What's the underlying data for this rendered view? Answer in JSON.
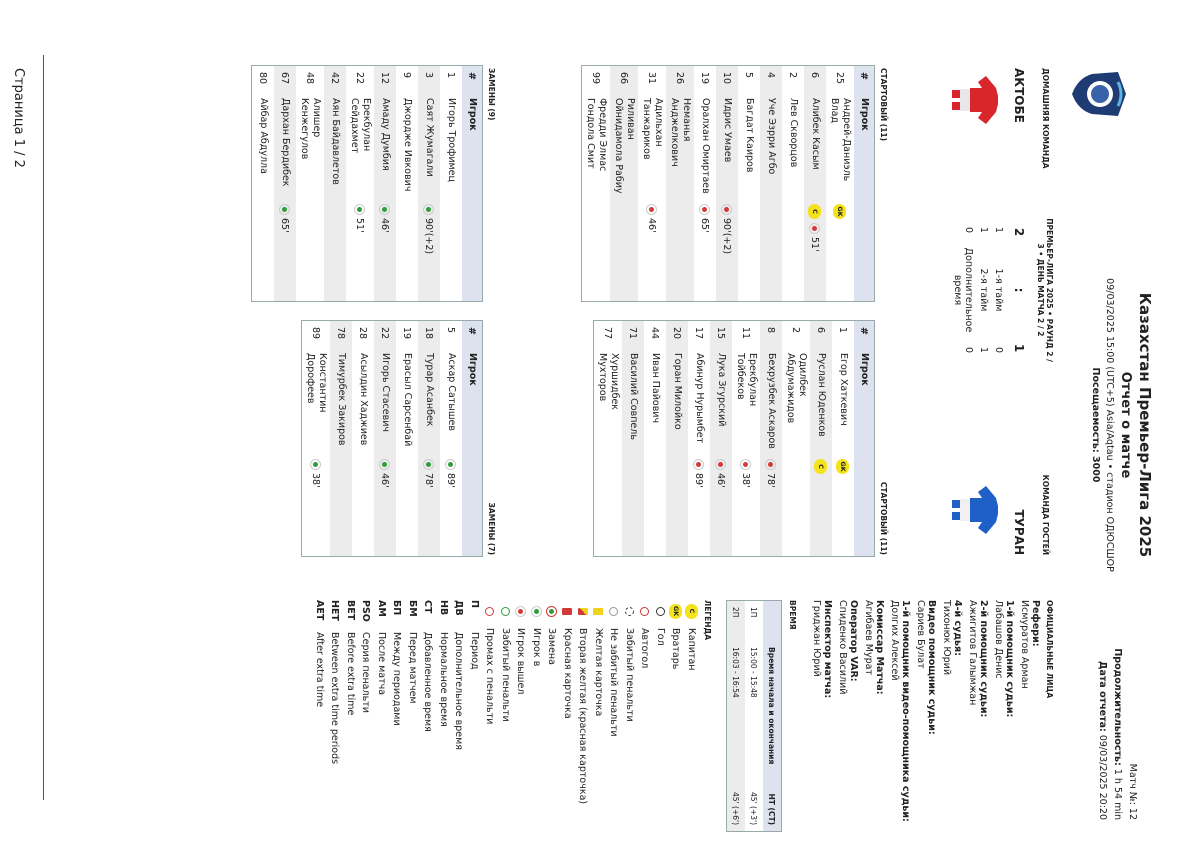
{
  "header": {
    "title": "Казахстан Премьер-Лига 2025",
    "subtitle": "Отчет о матче",
    "datetime": "09/03/2025 15:00 (UTC+5) Asia/Aqtau  •  стадион ОДЮСШОР",
    "attendance": "Посещаемость: 3000",
    "match_no": "Матч №: 12",
    "duration_label": "Продолжительность:",
    "duration": "1 h 54 min",
    "report_date_label": "Дата отчета:",
    "report_date": "09/03/2025 20:20"
  },
  "match": {
    "home_label": "ДОМАШНЯЯ КОМАНДА",
    "competition": "ПРЕМЬЕР-ЛИГА 2025 • РАУНД 2 / 3 • ДЕНЬ МАТЧА 2 / 2",
    "away_label": "КОМАНДА ГОСТЕЙ",
    "home_team": "АКТОБЕ",
    "away_team": "ТУРАН",
    "home_score": "2",
    "separator": ":",
    "away_score": "1",
    "periods": [
      {
        "home": "1",
        "label": "1-я тайм",
        "away": "0"
      },
      {
        "home": "1",
        "label": "2-я тайм",
        "away": "1"
      },
      {
        "home": "0",
        "label": "Дополнительное время",
        "away": "0"
      }
    ]
  },
  "home": {
    "starting_title": "СТАРТОВЫЙ (11)",
    "subs_title": "ЗАМЕНЫ (9)",
    "columns": [
      "#",
      "Игрок"
    ],
    "starting": [
      {
        "number": "25",
        "name": "Андрей-Даниэль Влад",
        "badges": [
          "GK"
        ],
        "events": []
      },
      {
        "number": "6",
        "name": "Алибек Касым",
        "badges": [
          "C"
        ],
        "events": [
          {
            "type": "out",
            "minute": "51'"
          }
        ]
      },
      {
        "number": "2",
        "name": "Лев Скворцов",
        "badges": [],
        "events": []
      },
      {
        "number": "4",
        "name": "Уче Эзрри Агбо",
        "badges": [],
        "events": []
      },
      {
        "number": "5",
        "name": "Багдат Каиров",
        "badges": [],
        "events": []
      },
      {
        "number": "10",
        "name": "Идрис Умаев",
        "badges": [],
        "events": [
          {
            "type": "out",
            "minute": "90'(+2)"
          }
        ]
      },
      {
        "number": "19",
        "name": "Оралхан Омиртаев",
        "badges": [],
        "events": [
          {
            "type": "out",
            "minute": "65'"
          }
        ]
      },
      {
        "number": "26",
        "name": "Неманья Анджелкович",
        "badges": [],
        "events": []
      },
      {
        "number": "31",
        "name": "Адильхан Танжариков",
        "badges": [],
        "events": [
          {
            "type": "out",
            "minute": "46'"
          }
        ]
      },
      {
        "number": "66",
        "name": "Риливан Ойнидамола Рабиу",
        "badges": [],
        "events": []
      },
      {
        "number": "99",
        "name": "Фредди Элмас Гондола Смит",
        "badges": [],
        "events": []
      }
    ],
    "subs": [
      {
        "number": "1",
        "name": "Игорь Трофимец",
        "badges": [],
        "events": []
      },
      {
        "number": "3",
        "name": "Саят Жумагали",
        "badges": [],
        "events": [
          {
            "type": "in",
            "minute": "90'(+2)"
          }
        ]
      },
      {
        "number": "9",
        "name": "Джордже Ивкович",
        "badges": [],
        "events": []
      },
      {
        "number": "12",
        "name": "Амаду Думбия",
        "badges": [],
        "events": [
          {
            "type": "in",
            "minute": "46'"
          }
        ]
      },
      {
        "number": "22",
        "name": "Ерекбулан Сейдахмет",
        "badges": [],
        "events": [
          {
            "type": "in",
            "minute": "51'"
          }
        ]
      },
      {
        "number": "42",
        "name": "Аян Байдавлетов",
        "badges": [],
        "events": []
      },
      {
        "number": "48",
        "name": "Алишер Кенжегулов",
        "badges": [],
        "events": []
      },
      {
        "number": "67",
        "name": "Дархан Бердибек",
        "badges": [],
        "events": [
          {
            "type": "in",
            "minute": "65'"
          }
        ]
      },
      {
        "number": "80",
        "name": "Айбар Абдулла",
        "badges": [],
        "events": []
      }
    ]
  },
  "away": {
    "starting_title": "СТАРТОВЫЙ (11)",
    "subs_title": "ЗАМЕНЫ (7)",
    "columns": [
      "#",
      "Игрок"
    ],
    "starting": [
      {
        "number": "1",
        "name": "Егор Хаткевич",
        "badges": [
          "GK"
        ],
        "events": []
      },
      {
        "number": "6",
        "name": "Руслан Юденков",
        "badges": [
          "C"
        ],
        "events": []
      },
      {
        "number": "2",
        "name": "Одилбек Абдумажидов",
        "badges": [],
        "events": []
      },
      {
        "number": "8",
        "name": "Бехрузбек Аскаров",
        "badges": [],
        "events": [
          {
            "type": "out",
            "minute": "78'"
          }
        ]
      },
      {
        "number": "11",
        "name": "Ерекбулан Тойбеков",
        "badges": [],
        "events": [
          {
            "type": "out",
            "minute": "38'"
          }
        ]
      },
      {
        "number": "15",
        "name": "Лука Згурский",
        "badges": [],
        "events": [
          {
            "type": "out",
            "minute": "46'"
          }
        ]
      },
      {
        "number": "17",
        "name": "Абинур Нурымбет",
        "badges": [],
        "events": [
          {
            "type": "out",
            "minute": "89'"
          }
        ]
      },
      {
        "number": "20",
        "name": "Горан Милойко",
        "badges": [],
        "events": []
      },
      {
        "number": "44",
        "name": "Иван Пайович",
        "badges": [],
        "events": []
      },
      {
        "number": "71",
        "name": "Василий Совпель",
        "badges": [],
        "events": []
      },
      {
        "number": "77",
        "name": "Хуршидбек Мухторов",
        "badges": [],
        "events": []
      }
    ],
    "subs": [
      {
        "number": "5",
        "name": "Аскар Сатышев",
        "badges": [],
        "events": [
          {
            "type": "in",
            "minute": "89'"
          }
        ]
      },
      {
        "number": "18",
        "name": "Турар Асанбек",
        "badges": [],
        "events": [
          {
            "type": "in",
            "minute": "78'"
          }
        ]
      },
      {
        "number": "19",
        "name": "Ерасыл Сарсенбай",
        "badges": [],
        "events": []
      },
      {
        "number": "22",
        "name": "Игорь Стасевич",
        "badges": [],
        "events": [
          {
            "type": "in",
            "minute": "46'"
          }
        ]
      },
      {
        "number": "28",
        "name": "Асылдин Хаджиев",
        "badges": [],
        "events": []
      },
      {
        "number": "78",
        "name": "Тимурбек Закиров",
        "badges": [],
        "events": []
      },
      {
        "number": "89",
        "name": "Константин Дорофеев",
        "badges": [],
        "events": [
          {
            "type": "in",
            "minute": "38'"
          }
        ]
      }
    ]
  },
  "officials": {
    "title": "ОФИЦИАЛЬНЫЕ ЛИЦА",
    "items": [
      {
        "label": "Рефери:",
        "name": "Исмуратов Арман"
      },
      {
        "label": "1-й помощник судьи:",
        "name": "Лабашов Денис"
      },
      {
        "label": "2-й помощник судьи:",
        "name": "Ажигитов Галымжан"
      },
      {
        "label": "4-й судья:",
        "name": "Тихонюк Юрий"
      },
      {
        "label": "Видео помощник судьи:",
        "name": "Сариев Булат"
      },
      {
        "label": "1-й помощник видео-помощника судьи:",
        "name": "Долгих Алексей"
      },
      {
        "label": "Комиссар Матча:",
        "name": "Агибаев Мурат"
      },
      {
        "label": "Оператор VAR:",
        "name": "Спиденко Василий"
      },
      {
        "label": "Инспектор матча:",
        "name": "Гриджан Юрий"
      }
    ]
  },
  "time": {
    "title": "ВРЕМЯ",
    "columns": [
      "Время начала и окончания",
      "НТ (СТ)"
    ],
    "rows": [
      {
        "period": "1П",
        "time": "15:00 - 15:48",
        "ht": "45' (+3')"
      },
      {
        "period": "2П",
        "time": "16:03 - 16:54",
        "ht": "45' (+6')"
      }
    ]
  },
  "legend": {
    "title": "ЛЕГЕНДА",
    "items": [
      {
        "icon": "captain",
        "icon_text": "C",
        "text": "Капитан"
      },
      {
        "icon": "gk",
        "icon_text": "GK",
        "text": "Вратарь"
      },
      {
        "icon": "goal",
        "text": "Гол"
      },
      {
        "icon": "own_goal",
        "text": "Автогол"
      },
      {
        "icon": "pen_goal",
        "text": "Забитый пенальти"
      },
      {
        "icon": "pen_miss",
        "text": "Не забитый пенальти"
      },
      {
        "icon": "yellow",
        "text": "Желтая карточка"
      },
      {
        "icon": "second_yellow",
        "text": "Вторая желтая (красная карточка)"
      },
      {
        "icon": "red",
        "text": "Красная карточка"
      },
      {
        "icon": "sub",
        "text": "Замена"
      },
      {
        "icon": "in",
        "text": "Игрок в"
      },
      {
        "icon": "out",
        "text": "Игрок вышел"
      },
      {
        "icon": "pso_goal",
        "text": "Забитый пенальти"
      },
      {
        "icon": "pso_miss",
        "text": "Промах с пенальти"
      },
      {
        "code": "П",
        "text": "Период"
      },
      {
        "code": "ДВ",
        "text": "Дополнительное время"
      },
      {
        "code": "НВ",
        "text": "Нормальное время"
      },
      {
        "code": "СТ",
        "text": "Добавленное время"
      },
      {
        "code": "БМ",
        "text": "Перед матчем"
      },
      {
        "code": "БП",
        "text": "Между периодами"
      },
      {
        "code": "АМ",
        "text": "После матча"
      },
      {
        "code": "PSO",
        "text": "Серия пенальти"
      },
      {
        "code": "BET",
        "text": "Before extra time"
      },
      {
        "code": "HET",
        "text": "Between extra time periods"
      },
      {
        "code": "AET",
        "text": "After extra time"
      }
    ]
  },
  "footer": {
    "page": "Страница 1 / 2"
  }
}
